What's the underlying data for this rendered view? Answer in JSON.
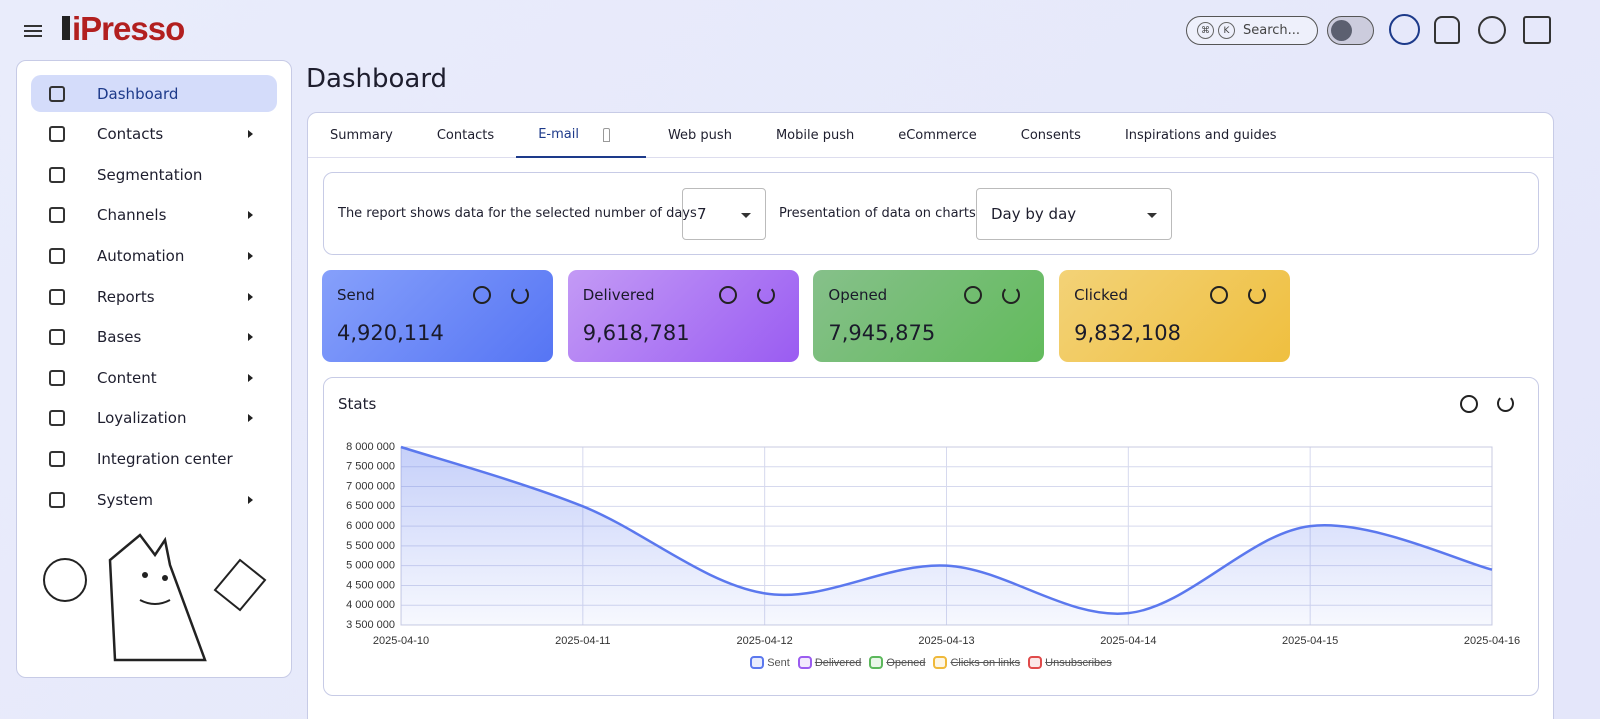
{
  "header": {
    "logo": "iPresso",
    "search_keys": [
      "⌘",
      "K"
    ],
    "search": "Search..."
  },
  "sidebar": {
    "items": [
      {
        "label": "Dashboard",
        "active": true
      },
      {
        "label": "Contacts",
        "submenu": true
      },
      {
        "label": "Segmentation"
      },
      {
        "label": "Channels",
        "submenu": true
      },
      {
        "label": "Automation",
        "submenu": true
      },
      {
        "label": "Reports",
        "submenu": true
      },
      {
        "label": "Bases",
        "submenu": true
      },
      {
        "label": "Content",
        "submenu": true
      },
      {
        "label": "Loyalization",
        "submenu": true
      },
      {
        "label": "Integration center"
      },
      {
        "label": "System",
        "submenu": true
      }
    ]
  },
  "page": {
    "title": "Dashboard"
  },
  "tabs": {
    "items": [
      "Summary",
      "Contacts",
      "E-mail",
      "Web push",
      "Mobile push",
      "eCommerce",
      "Consents",
      "Inspirations and guides"
    ],
    "active": 2
  },
  "filters": {
    "days_label": "The report shows data for the selected number of days",
    "days_value": "7",
    "presentation_label": "Presentation of data on charts",
    "presentation_value": "Day by day"
  },
  "kpis": [
    {
      "label": "Send",
      "value": "4,920,114"
    },
    {
      "label": "Delivered",
      "value": "9,618,781"
    },
    {
      "label": "Opened",
      "value": "7,945,875"
    },
    {
      "label": "Clicked",
      "value": "9,832,108"
    }
  ],
  "chart_data": {
    "type": "line",
    "title": "Stats",
    "x": [
      "2025-04-10",
      "2025-04-11",
      "2025-04-12",
      "2025-04-13",
      "2025-04-14",
      "2025-04-15",
      "2025-04-16"
    ],
    "series": [
      {
        "name": "Sent",
        "color": "#5b78ee",
        "values": [
          8000000,
          6500000,
          4300000,
          5000000,
          3800000,
          6000000,
          4900000
        ]
      },
      {
        "name": "Delivered",
        "color": "#9b5cf0",
        "hidden": true
      },
      {
        "name": "Opened",
        "color": "#5cb85c",
        "hidden": true
      },
      {
        "name": "Clicks on links",
        "color": "#efb93a",
        "hidden": true
      },
      {
        "name": "Unsubscribes",
        "color": "#e04a4a",
        "hidden": true
      }
    ],
    "ylim": [
      3500000,
      8000000
    ],
    "yticks": [
      {
        "value": 3500000,
        "label": "3 500 000"
      },
      {
        "value": 4000000,
        "label": "4 000 000"
      },
      {
        "value": 4500000,
        "label": "4 500 000"
      },
      {
        "value": 5000000,
        "label": "5 000 000"
      },
      {
        "value": 5500000,
        "label": "5 500 000"
      },
      {
        "value": 6000000,
        "label": "6 000 000"
      },
      {
        "value": 6500000,
        "label": "6 500 000"
      },
      {
        "value": 7000000,
        "label": "7 000 000"
      },
      {
        "value": 7500000,
        "label": "7 500 000"
      },
      {
        "value": 8000000,
        "label": "8 000 000"
      }
    ],
    "grid": true,
    "smooth": true
  }
}
